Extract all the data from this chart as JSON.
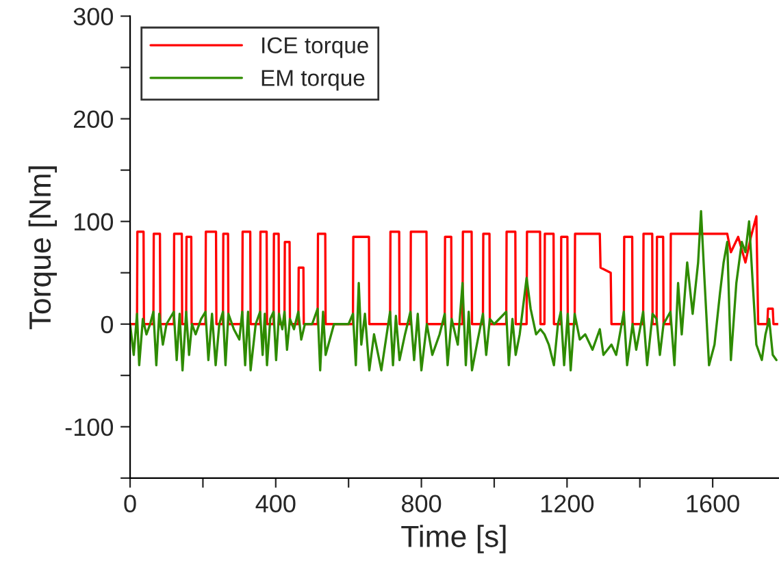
{
  "chart_data": {
    "type": "line",
    "xlabel": "Time [s]",
    "ylabel": "Torque [Nm]",
    "xlim": [
      0,
      1780
    ],
    "ylim": [
      -150,
      300
    ],
    "xticks": [
      0,
      {
        "value": 200,
        "label": null
      },
      400,
      {
        "value": 600,
        "label": null
      },
      800,
      {
        "value": 1000,
        "label": null
      },
      1200,
      {
        "value": 1400,
        "label": null
      },
      1600
    ],
    "yticks": [
      {
        "value": -150,
        "label": null
      },
      -100,
      {
        "value": -50,
        "label": null
      },
      0,
      {
        "value": 50,
        "label": null
      },
      100,
      {
        "value": 150,
        "label": null
      },
      200,
      {
        "value": 250,
        "label": null
      },
      300
    ],
    "grid": false,
    "legend": "top left",
    "line_style": "solid",
    "marker": "none",
    "series": [
      {
        "name": "ICE torque",
        "color": "#ff0000",
        "x": [
          0,
          19,
          20,
          37,
          38,
          64,
          65,
          82,
          83,
          120,
          121,
          142,
          143,
          154,
          155,
          168,
          169,
          207,
          208,
          236,
          237,
          255,
          256,
          269,
          270,
          308,
          309,
          330,
          331,
          357,
          358,
          375,
          376,
          394,
          395,
          408,
          409,
          424,
          425,
          438,
          439,
          462,
          463,
          476,
          477,
          515,
          516,
          536,
          537,
          612,
          613,
          656,
          657,
          714,
          715,
          739,
          740,
          770,
          771,
          814,
          815,
          864,
          865,
          882,
          883,
          913,
          914,
          938,
          939,
          969,
          970,
          987,
          988,
          1033,
          1034,
          1058,
          1059,
          1089,
          1090,
          1126,
          1127,
          1138,
          1139,
          1163,
          1164,
          1183,
          1184,
          1201,
          1202,
          1221,
          1222,
          1290,
          1292,
          1320,
          1322,
          1356,
          1357,
          1379,
          1380,
          1409,
          1410,
          1434,
          1435,
          1446,
          1447,
          1464,
          1465,
          1484,
          1485,
          1640,
          1650,
          1670,
          1690,
          1705,
          1720,
          1725,
          1750,
          1752,
          1765,
          1767,
          1780
        ],
        "values": [
          0,
          0,
          90,
          90,
          0,
          0,
          88,
          88,
          0,
          0,
          88,
          88,
          0,
          0,
          85,
          85,
          0,
          0,
          90,
          90,
          0,
          0,
          88,
          88,
          0,
          0,
          90,
          90,
          0,
          0,
          90,
          90,
          0,
          0,
          88,
          88,
          0,
          0,
          80,
          80,
          0,
          0,
          55,
          55,
          0,
          0,
          88,
          88,
          0,
          0,
          85,
          85,
          0,
          0,
          90,
          90,
          0,
          0,
          90,
          90,
          0,
          0,
          85,
          85,
          0,
          0,
          90,
          90,
          0,
          0,
          88,
          88,
          0,
          0,
          90,
          90,
          0,
          0,
          90,
          90,
          0,
          0,
          88,
          88,
          0,
          0,
          85,
          85,
          0,
          0,
          88,
          88,
          55,
          50,
          0,
          0,
          85,
          85,
          0,
          0,
          88,
          88,
          0,
          0,
          85,
          85,
          0,
          0,
          88,
          88,
          70,
          85,
          60,
          85,
          105,
          0,
          0,
          15,
          15,
          0,
          0
        ]
      },
      {
        "name": "EM torque",
        "color": "#2e8b00",
        "x": [
          0,
          10,
          19,
          25,
          35,
          45,
          55,
          64,
          72,
          80,
          90,
          100,
          120,
          128,
          136,
          144,
          154,
          162,
          170,
          180,
          195,
          207,
          215,
          225,
          235,
          245,
          255,
          262,
          270,
          285,
          300,
          308,
          316,
          324,
          331,
          345,
          357,
          364,
          370,
          376,
          385,
          394,
          401,
          409,
          418,
          424,
          431,
          439,
          450,
          462,
          470,
          480,
          500,
          515,
          522,
          530,
          537,
          560,
          600,
          612,
          620,
          628,
          635,
          645,
          657,
          670,
          690,
          714,
          722,
          730,
          740,
          755,
          770,
          780,
          790,
          800,
          815,
          830,
          850,
          864,
          872,
          883,
          900,
          913,
          922,
          930,
          939,
          955,
          969,
          978,
          988,
          1000,
          1033,
          1040,
          1050,
          1059,
          1070,
          1089,
          1100,
          1115,
          1127,
          1138,
          1150,
          1164,
          1175,
          1183,
          1192,
          1202,
          1210,
          1221,
          1235,
          1250,
          1270,
          1290,
          1300,
          1322,
          1335,
          1356,
          1365,
          1380,
          1390,
          1409,
          1420,
          1435,
          1446,
          1455,
          1465,
          1484,
          1495,
          1505,
          1515,
          1530,
          1545,
          1560,
          1568,
          1578,
          1590,
          1605,
          1620,
          1630,
          1640,
          1650,
          1665,
          1680,
          1690,
          1700,
          1710,
          1720,
          1735,
          1745,
          1755,
          1765,
          1775
        ],
        "values": [
          0,
          -30,
          10,
          -40,
          5,
          -10,
          0,
          12,
          -40,
          10,
          -20,
          0,
          12,
          -35,
          10,
          -45,
          12,
          -30,
          0,
          -10,
          5,
          12,
          -35,
          10,
          -40,
          0,
          12,
          -40,
          10,
          -5,
          -15,
          12,
          -40,
          12,
          -45,
          0,
          12,
          -30,
          10,
          -40,
          5,
          12,
          -35,
          10,
          -5,
          12,
          -25,
          5,
          -5,
          12,
          -15,
          0,
          0,
          15,
          -45,
          12,
          -30,
          0,
          0,
          10,
          -40,
          40,
          -20,
          10,
          -45,
          -10,
          -45,
          12,
          -40,
          8,
          -35,
          -10,
          12,
          -35,
          10,
          -45,
          0,
          -30,
          -10,
          10,
          -40,
          5,
          -20,
          40,
          -40,
          12,
          -45,
          -15,
          10,
          -30,
          5,
          0,
          12,
          -40,
          5,
          -30,
          -10,
          45,
          15,
          -10,
          -5,
          -10,
          -20,
          -40,
          0,
          12,
          -40,
          10,
          -45,
          10,
          -15,
          -10,
          -25,
          -5,
          -30,
          -20,
          -30,
          12,
          -40,
          0,
          -25,
          12,
          -40,
          10,
          5,
          -30,
          0,
          12,
          -40,
          40,
          -10,
          60,
          10,
          60,
          110,
          40,
          -40,
          -20,
          30,
          60,
          80,
          -35,
          40,
          80,
          70,
          100,
          40,
          -20,
          -35,
          -10,
          5,
          -30,
          -35
        ]
      }
    ]
  }
}
